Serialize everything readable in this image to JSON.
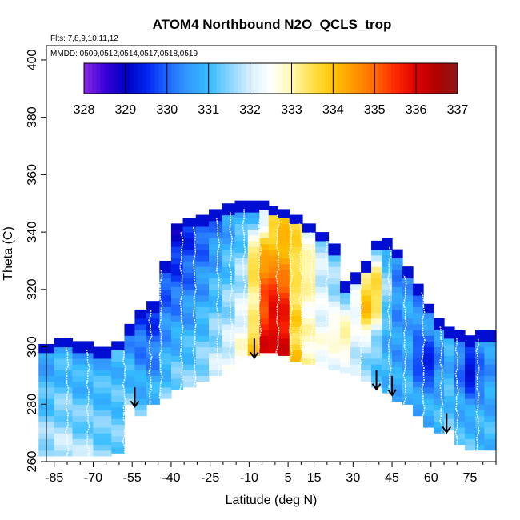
{
  "chart_data": {
    "type": "heatmap",
    "title": "ATOM4 Northbound N2O_QCLS_trop",
    "flights_note": "Flts: 7,8,9,10,11,12",
    "dates_note": "MMDD: 0509,0512,0514,0517,0518,0519",
    "xlabel": "Latitude (deg N)",
    "ylabel": "Theta (C)",
    "xlim": [
      -88,
      85
    ],
    "ylim": [
      260,
      405
    ],
    "x_ticks": [
      -85,
      -70,
      -55,
      -40,
      -25,
      -10,
      5,
      15,
      30,
      45,
      60,
      75
    ],
    "y_ticks": [
      260,
      280,
      300,
      320,
      340,
      360,
      380,
      400
    ],
    "colorbar": {
      "ticks": [
        328,
        329,
        330,
        331,
        332,
        333,
        334,
        335,
        336,
        337
      ],
      "range": [
        328,
        337
      ],
      "stops": [
        {
          "value": 328.0,
          "color": "#8a2be2"
        },
        {
          "value": 328.5,
          "color": "#3a00d8"
        },
        {
          "value": 329.0,
          "color": "#0000c0"
        },
        {
          "value": 329.5,
          "color": "#0022ee"
        },
        {
          "value": 330.0,
          "color": "#1e66ff"
        },
        {
          "value": 330.5,
          "color": "#3399ff"
        },
        {
          "value": 331.0,
          "color": "#33bbff"
        },
        {
          "value": 331.5,
          "color": "#88d4ff"
        },
        {
          "value": 332.0,
          "color": "#d6f0ff"
        },
        {
          "value": 332.5,
          "color": "#ffffff"
        },
        {
          "value": 333.0,
          "color": "#fff8b0"
        },
        {
          "value": 333.5,
          "color": "#ffe14a"
        },
        {
          "value": 334.0,
          "color": "#ffc400"
        },
        {
          "value": 334.5,
          "color": "#ff9900"
        },
        {
          "value": 335.0,
          "color": "#ff6a00"
        },
        {
          "value": 335.5,
          "color": "#ff2a00"
        },
        {
          "value": 336.0,
          "color": "#dd0000"
        },
        {
          "value": 336.5,
          "color": "#b00000"
        },
        {
          "value": 337.0,
          "color": "#8b1a1a"
        }
      ]
    },
    "arrow_latitudes": [
      -54,
      -8,
      39,
      45,
      66
    ],
    "profiles": [
      {
        "lat": -88,
        "bottom": 262,
        "top": 301,
        "v_bottom": 331.8,
        "v_top": 330.4
      },
      {
        "lat": -82,
        "bottom": 262,
        "top": 303,
        "v_bottom": 331.9,
        "v_top": 330.6
      },
      {
        "lat": -74,
        "bottom": 262,
        "top": 302,
        "v_bottom": 331.7,
        "v_top": 330.5
      },
      {
        "lat": -66,
        "bottom": 262,
        "top": 300,
        "v_bottom": 331.5,
        "v_top": 330.7
      },
      {
        "lat": -60,
        "bottom": 263,
        "top": 302,
        "v_bottom": 331.4,
        "v_top": 330.8
      },
      {
        "lat": -56,
        "bottom": 280,
        "top": 308,
        "v_bottom": 331.3,
        "v_top": 330.2
      },
      {
        "lat": -52,
        "bottom": 276,
        "top": 313,
        "v_bottom": 331.2,
        "v_top": 329.6
      },
      {
        "lat": -47,
        "bottom": 280,
        "top": 316,
        "v_bottom": 331.0,
        "v_top": 329.3
      },
      {
        "lat": -42,
        "bottom": 282,
        "top": 330,
        "v_bottom": 331.3,
        "v_top": 329.5
      },
      {
        "lat": -38,
        "bottom": 285,
        "top": 343,
        "v_bottom": 331.5,
        "v_top": 329.0
      },
      {
        "lat": -33,
        "bottom": 286,
        "top": 345,
        "v_bottom": 331.5,
        "v_top": 329.3
      },
      {
        "lat": -28,
        "bottom": 288,
        "top": 346,
        "v_bottom": 331.7,
        "v_top": 329.6
      },
      {
        "lat": -23,
        "bottom": 290,
        "top": 348,
        "v_bottom": 332.0,
        "v_top": 330.0
      },
      {
        "lat": -18,
        "bottom": 292,
        "top": 350,
        "v_bottom": 332.3,
        "v_top": 330.3
      },
      {
        "lat": -13,
        "bottom": 295,
        "top": 351,
        "v_bottom": 332.8,
        "v_top": 330.5
      },
      {
        "lat": -8,
        "bottom": 297,
        "top": 351,
        "v_bottom": 333.0,
        "v_top": 330.6
      },
      {
        "lat": -4,
        "bottom": 298,
        "top": 351,
        "v_bottom": 334.0,
        "v_top": 331.5
      },
      {
        "lat": -1,
        "bottom": 298,
        "top": 349,
        "v_bottom": 335.0,
        "v_top": 333.0
      },
      {
        "lat": 3,
        "bottom": 297,
        "top": 348,
        "v_bottom": 336.0,
        "v_top": 333.5
      },
      {
        "lat": 8,
        "bottom": 295,
        "top": 346,
        "v_bottom": 333.8,
        "v_top": 333.0
      },
      {
        "lat": 13,
        "bottom": 294,
        "top": 343,
        "v_bottom": 333.0,
        "v_top": 332.2
      },
      {
        "lat": 18,
        "bottom": 293,
        "top": 340,
        "v_bottom": 332.6,
        "v_top": 331.6
      },
      {
        "lat": 23,
        "bottom": 292,
        "top": 336,
        "v_bottom": 332.2,
        "v_top": 331.3
      },
      {
        "lat": 27,
        "bottom": 291,
        "top": 323,
        "v_bottom": 332.0,
        "v_top": 330.9
      },
      {
        "lat": 31,
        "bottom": 290,
        "top": 326,
        "v_bottom": 331.8,
        "v_top": 331.2
      },
      {
        "lat": 35,
        "bottom": 288,
        "top": 330,
        "v_bottom": 331.6,
        "v_top": 331.4
      },
      {
        "lat": 39,
        "bottom": 286,
        "top": 337,
        "v_bottom": 331.3,
        "v_top": 330.6
      },
      {
        "lat": 43,
        "bottom": 284,
        "top": 338,
        "v_bottom": 331.0,
        "v_top": 330.3
      },
      {
        "lat": 47,
        "bottom": 281,
        "top": 334,
        "v_bottom": 330.8,
        "v_top": 330.2
      },
      {
        "lat": 51,
        "bottom": 280,
        "top": 328,
        "v_bottom": 331.0,
        "v_top": 330.5
      },
      {
        "lat": 55,
        "bottom": 276,
        "top": 322,
        "v_bottom": 330.8,
        "v_top": 330.3
      },
      {
        "lat": 59,
        "bottom": 272,
        "top": 315,
        "v_bottom": 330.9,
        "v_top": 330.6
      },
      {
        "lat": 63,
        "bottom": 270,
        "top": 310,
        "v_bottom": 331.0,
        "v_top": 330.5
      },
      {
        "lat": 67,
        "bottom": 271,
        "top": 307,
        "v_bottom": 331.2,
        "v_top": 330.8
      },
      {
        "lat": 71,
        "bottom": 266,
        "top": 306,
        "v_bottom": 331.0,
        "v_top": 330.6
      },
      {
        "lat": 75,
        "bottom": 264,
        "top": 304,
        "v_bottom": 331.1,
        "v_top": 330.4
      },
      {
        "lat": 79,
        "bottom": 264,
        "top": 306,
        "v_bottom": 331.0,
        "v_top": 330.5
      },
      {
        "lat": 82,
        "bottom": 264,
        "top": 306,
        "v_bottom": 331.0,
        "v_top": 330.5
      }
    ],
    "hotspots": [
      {
        "lat": -3,
        "theta": 300,
        "value": 336.3
      },
      {
        "lat": -3,
        "theta": 320,
        "value": 335.5
      },
      {
        "lat": 0,
        "theta": 312,
        "value": 336.0
      },
      {
        "lat": -5,
        "theta": 330,
        "value": 334.5
      },
      {
        "lat": 5,
        "theta": 338,
        "value": 334.2
      },
      {
        "lat": 10,
        "theta": 325,
        "value": 333.5
      },
      {
        "lat": 36,
        "theta": 313,
        "value": 334.5
      },
      {
        "lat": 38,
        "theta": 322,
        "value": 333.8
      },
      {
        "lat": 26,
        "theta": 304,
        "value": 333.2
      },
      {
        "lat": 58,
        "theta": 294,
        "value": 329.3
      },
      {
        "lat": 75,
        "theta": 290,
        "value": 329.2
      }
    ]
  }
}
